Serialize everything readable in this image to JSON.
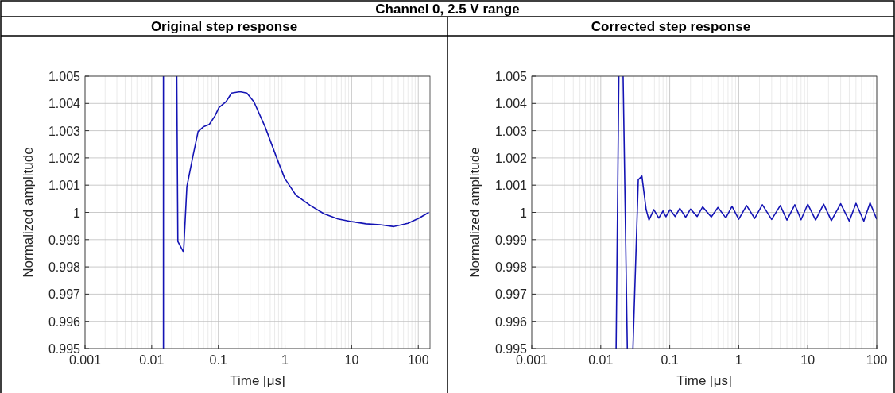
{
  "chart_data": [
    {
      "type": "other",
      "title": "Channel 0, 2.5 V range"
    },
    {
      "type": "line",
      "title": "Original step response",
      "xlabel": "Time [μs]",
      "ylabel": "Normalized amplitude",
      "log": "x",
      "grid": true,
      "xlim": [
        0.001,
        150
      ],
      "ylim": [
        0.995,
        1.005
      ],
      "xticks": [
        0.001,
        0.01,
        0.1,
        1,
        10,
        100
      ],
      "yticks": [
        0.995,
        0.996,
        0.997,
        0.998,
        0.999,
        1,
        1.001,
        1.002,
        1.003,
        1.004,
        1.005
      ],
      "series": [
        {
          "color": "#1414b4",
          "x": [
            0.015,
            0.015,
            0.0195,
            0.0238,
            0.0247,
            0.0301,
            0.0337,
            0.0409,
            0.0497,
            0.0604,
            0.0731,
            0.0888,
            0.1024,
            0.1302,
            0.158,
            0.211,
            0.268,
            0.342,
            0.505,
            0.743,
            0.99,
            1.46,
            2.38,
            3.85,
            6.24,
            10.1,
            16.4,
            26.6,
            43.1,
            69.8,
            102.6,
            144
          ],
          "values": [
            0.995,
            1.005,
            null,
            1.005,
            0.99893,
            0.99854,
            1.00094,
            1.00198,
            1.00297,
            1.00315,
            1.00323,
            1.00354,
            1.00385,
            1.00406,
            1.00438,
            1.00443,
            1.00438,
            1.00406,
            1.00313,
            1.00203,
            1.00125,
            1.00063,
            1.00026,
            0.99995,
            0.99976,
            0.99966,
            0.99958,
            0.99955,
            0.99948,
            0.9996,
            0.99979,
            1.0
          ]
        }
      ]
    },
    {
      "type": "line",
      "title": "Corrected step response",
      "xlabel": "Time [μs]",
      "ylabel": "Normalized amplitude",
      "log": "x",
      "grid": true,
      "xlim": [
        0.001,
        100
      ],
      "ylim": [
        0.995,
        1.005
      ],
      "xticks": [
        0.001,
        0.01,
        0.1,
        1,
        10,
        100
      ],
      "yticks": [
        0.995,
        0.996,
        0.997,
        0.998,
        0.999,
        1,
        1.001,
        1.002,
        1.003,
        1.004,
        1.005
      ],
      "series": [
        {
          "color": "#1414b4",
          "x": [
            0.0167,
            0.0183,
            0.0197,
            0.0211,
            0.0243,
            0.0268,
            0.0293,
            0.035,
            0.0395,
            0.0455,
            0.05,
            0.0587,
            0.0694,
            0.08,
            0.088,
            0.101,
            0.12,
            0.14,
            0.17,
            0.2,
            0.25,
            0.3,
            0.4,
            0.5,
            0.65,
            0.8,
            1.0,
            1.3,
            1.7,
            2.2,
            3,
            4,
            5,
            6.5,
            8,
            10,
            13,
            17,
            22,
            30,
            40,
            50,
            65,
            80,
            100
          ],
          "values": [
            0.995,
            1.005,
            null,
            1.005,
            0.995,
            null,
            0.995,
            1.0012,
            1.00133,
            1.0001,
            0.99972,
            1.0001,
            0.99979,
            1.00005,
            0.99984,
            1.0001,
            0.99985,
            1.00015,
            0.99982,
            1.00012,
            0.99985,
            1.0002,
            0.99983,
            1.00018,
            0.9998,
            1.00022,
            0.99975,
            1.00025,
            0.99978,
            1.00028,
            0.99974,
            1.00025,
            0.99972,
            1.00028,
            0.99973,
            1.0003,
            0.99972,
            1.0003,
            0.9997,
            1.00032,
            0.99968,
            1.00033,
            0.99968,
            1.00035,
            0.99975
          ]
        }
      ]
    }
  ]
}
